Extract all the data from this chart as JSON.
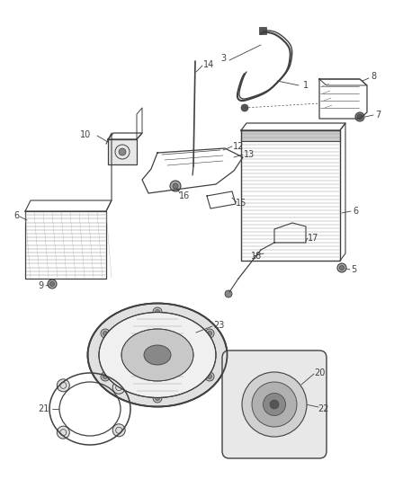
{
  "background_color": "#ffffff",
  "line_color": "#404040",
  "text_color": "#404040",
  "figsize": [
    4.38,
    5.33
  ],
  "dpi": 100
}
